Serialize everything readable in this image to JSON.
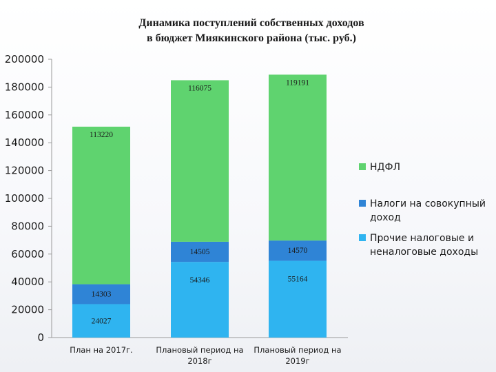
{
  "chart_data": {
    "type": "bar",
    "stacked": true,
    "title": [
      "Динамика поступлений собственных доходов",
      "в бюджет Миякинского района (тыс. руб.)"
    ],
    "categories": [
      [
        "План на 2017г."
      ],
      [
        "Плановый период на",
        "2018г"
      ],
      [
        "Плановый период на",
        "2019г"
      ]
    ],
    "series": [
      {
        "name": [
          "Прочие налоговые и",
          "неналоговые доходы"
        ],
        "color": "#2fb4f0",
        "values": [
          24027,
          54346,
          55164
        ]
      },
      {
        "name": [
          "Налоги на совокупный",
          "доход"
        ],
        "color": "#2f84d6",
        "values": [
          14303,
          14505,
          14570
        ]
      },
      {
        "name": [
          "НДФЛ"
        ],
        "color": "#5fd36f",
        "values": [
          113220,
          116075,
          119191
        ]
      }
    ],
    "ylim": [
      0,
      200000
    ],
    "yticks": [
      0,
      20000,
      40000,
      60000,
      80000,
      100000,
      120000,
      140000,
      160000,
      180000,
      200000
    ],
    "grid": false,
    "legend_position": "right",
    "xlabel": "",
    "ylabel": ""
  }
}
